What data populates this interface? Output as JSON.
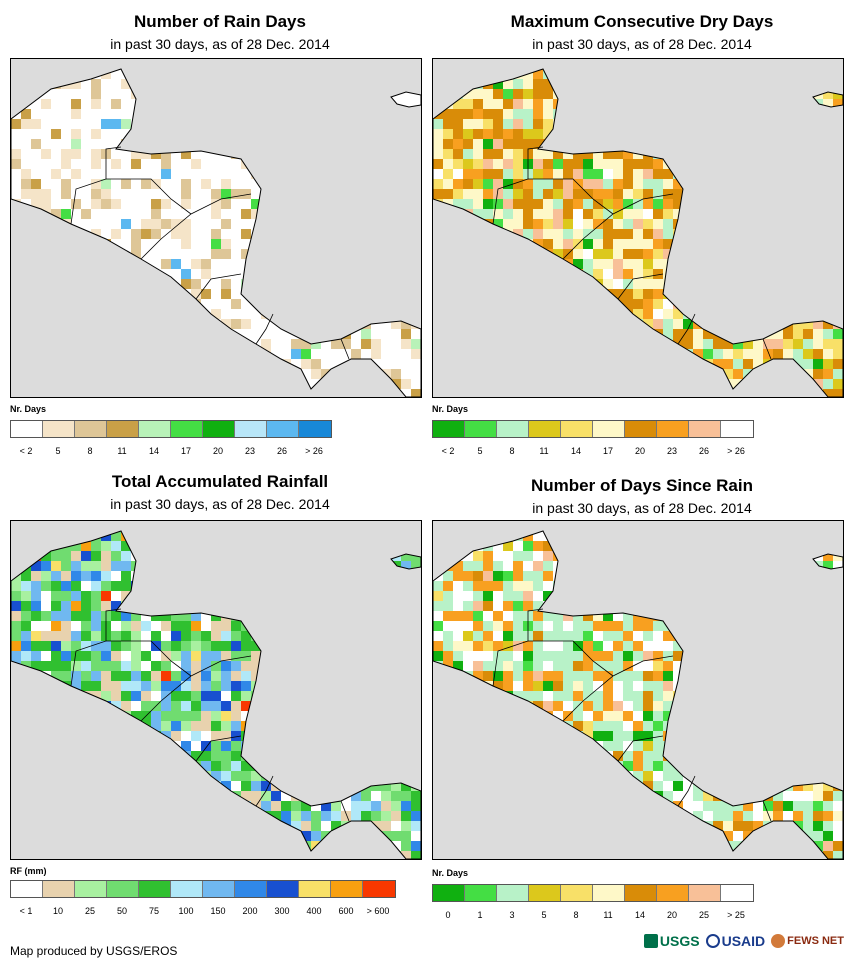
{
  "panels": [
    {
      "id": "rain-days",
      "title": "Number of Rain Days",
      "subtitle": "in past 30 days, as of 28 Dec. 2014",
      "legend_title": "Nr. Days",
      "legend_colors": [
        "#ffffff",
        "#f5e4c8",
        "#dec697",
        "#c9a047",
        "#b8f2b8",
        "#44de44",
        "#10b010",
        "#b8e6f8",
        "#5cb8f0",
        "#1888d8"
      ],
      "legend_labels": [
        "< 2",
        "5",
        "8",
        "11",
        "14",
        "17",
        "20",
        "23",
        "26",
        "> 26"
      ]
    },
    {
      "id": "max-dry-days",
      "title": "Maximum Consecutive Dry Days",
      "subtitle": "in past 30 days, as of 28 Dec. 2014",
      "legend_title": "Nr. Days",
      "legend_colors": [
        "#10b010",
        "#44de44",
        "#b8f2c8",
        "#dcc81c",
        "#f8e068",
        "#fef8c8",
        "#d98c08",
        "#f8a020",
        "#f8c098",
        "#ffffff"
      ],
      "legend_labels": [
        "< 2",
        "5",
        "8",
        "11",
        "14",
        "17",
        "20",
        "23",
        "26",
        "> 26"
      ]
    },
    {
      "id": "total-rainfall",
      "title": "Total Accumulated Rainfall",
      "subtitle": "in past 30 days, as of 28 Dec. 2014",
      "legend_title": "RF (mm)",
      "legend_colors": [
        "#ffffff",
        "#e8d2ae",
        "#a8f0a0",
        "#70dc70",
        "#30c030",
        "#b0e8f8",
        "#70b8f0",
        "#3088e8",
        "#1850d0",
        "#f8e068",
        "#f8a010",
        "#f83800"
      ],
      "legend_labels": [
        "< 1",
        "10",
        "25",
        "50",
        "75",
        "100",
        "150",
        "200",
        "300",
        "400",
        "600",
        "> 600"
      ]
    },
    {
      "id": "days-since-rain",
      "title": "Number of Days Since Rain",
      "subtitle": "in past 30 days, as of 28 Dec. 2014",
      "legend_title": "Nr. Days",
      "legend_colors": [
        "#10b010",
        "#44de44",
        "#b8f2c8",
        "#dcc81c",
        "#f8e068",
        "#fef8c8",
        "#d98c08",
        "#f8a020",
        "#f8c098",
        "#ffffff"
      ],
      "legend_labels": [
        "0",
        "1",
        "3",
        "5",
        "8",
        "11",
        "14",
        "20",
        "25",
        "> 25"
      ]
    }
  ],
  "colors": {
    "sea": "#dcdcdc",
    "border": "#000000"
  },
  "footer": {
    "credit": "Map produced by USGS/EROS",
    "logos": [
      "USGS",
      "USAID",
      "FEWS NET"
    ]
  }
}
